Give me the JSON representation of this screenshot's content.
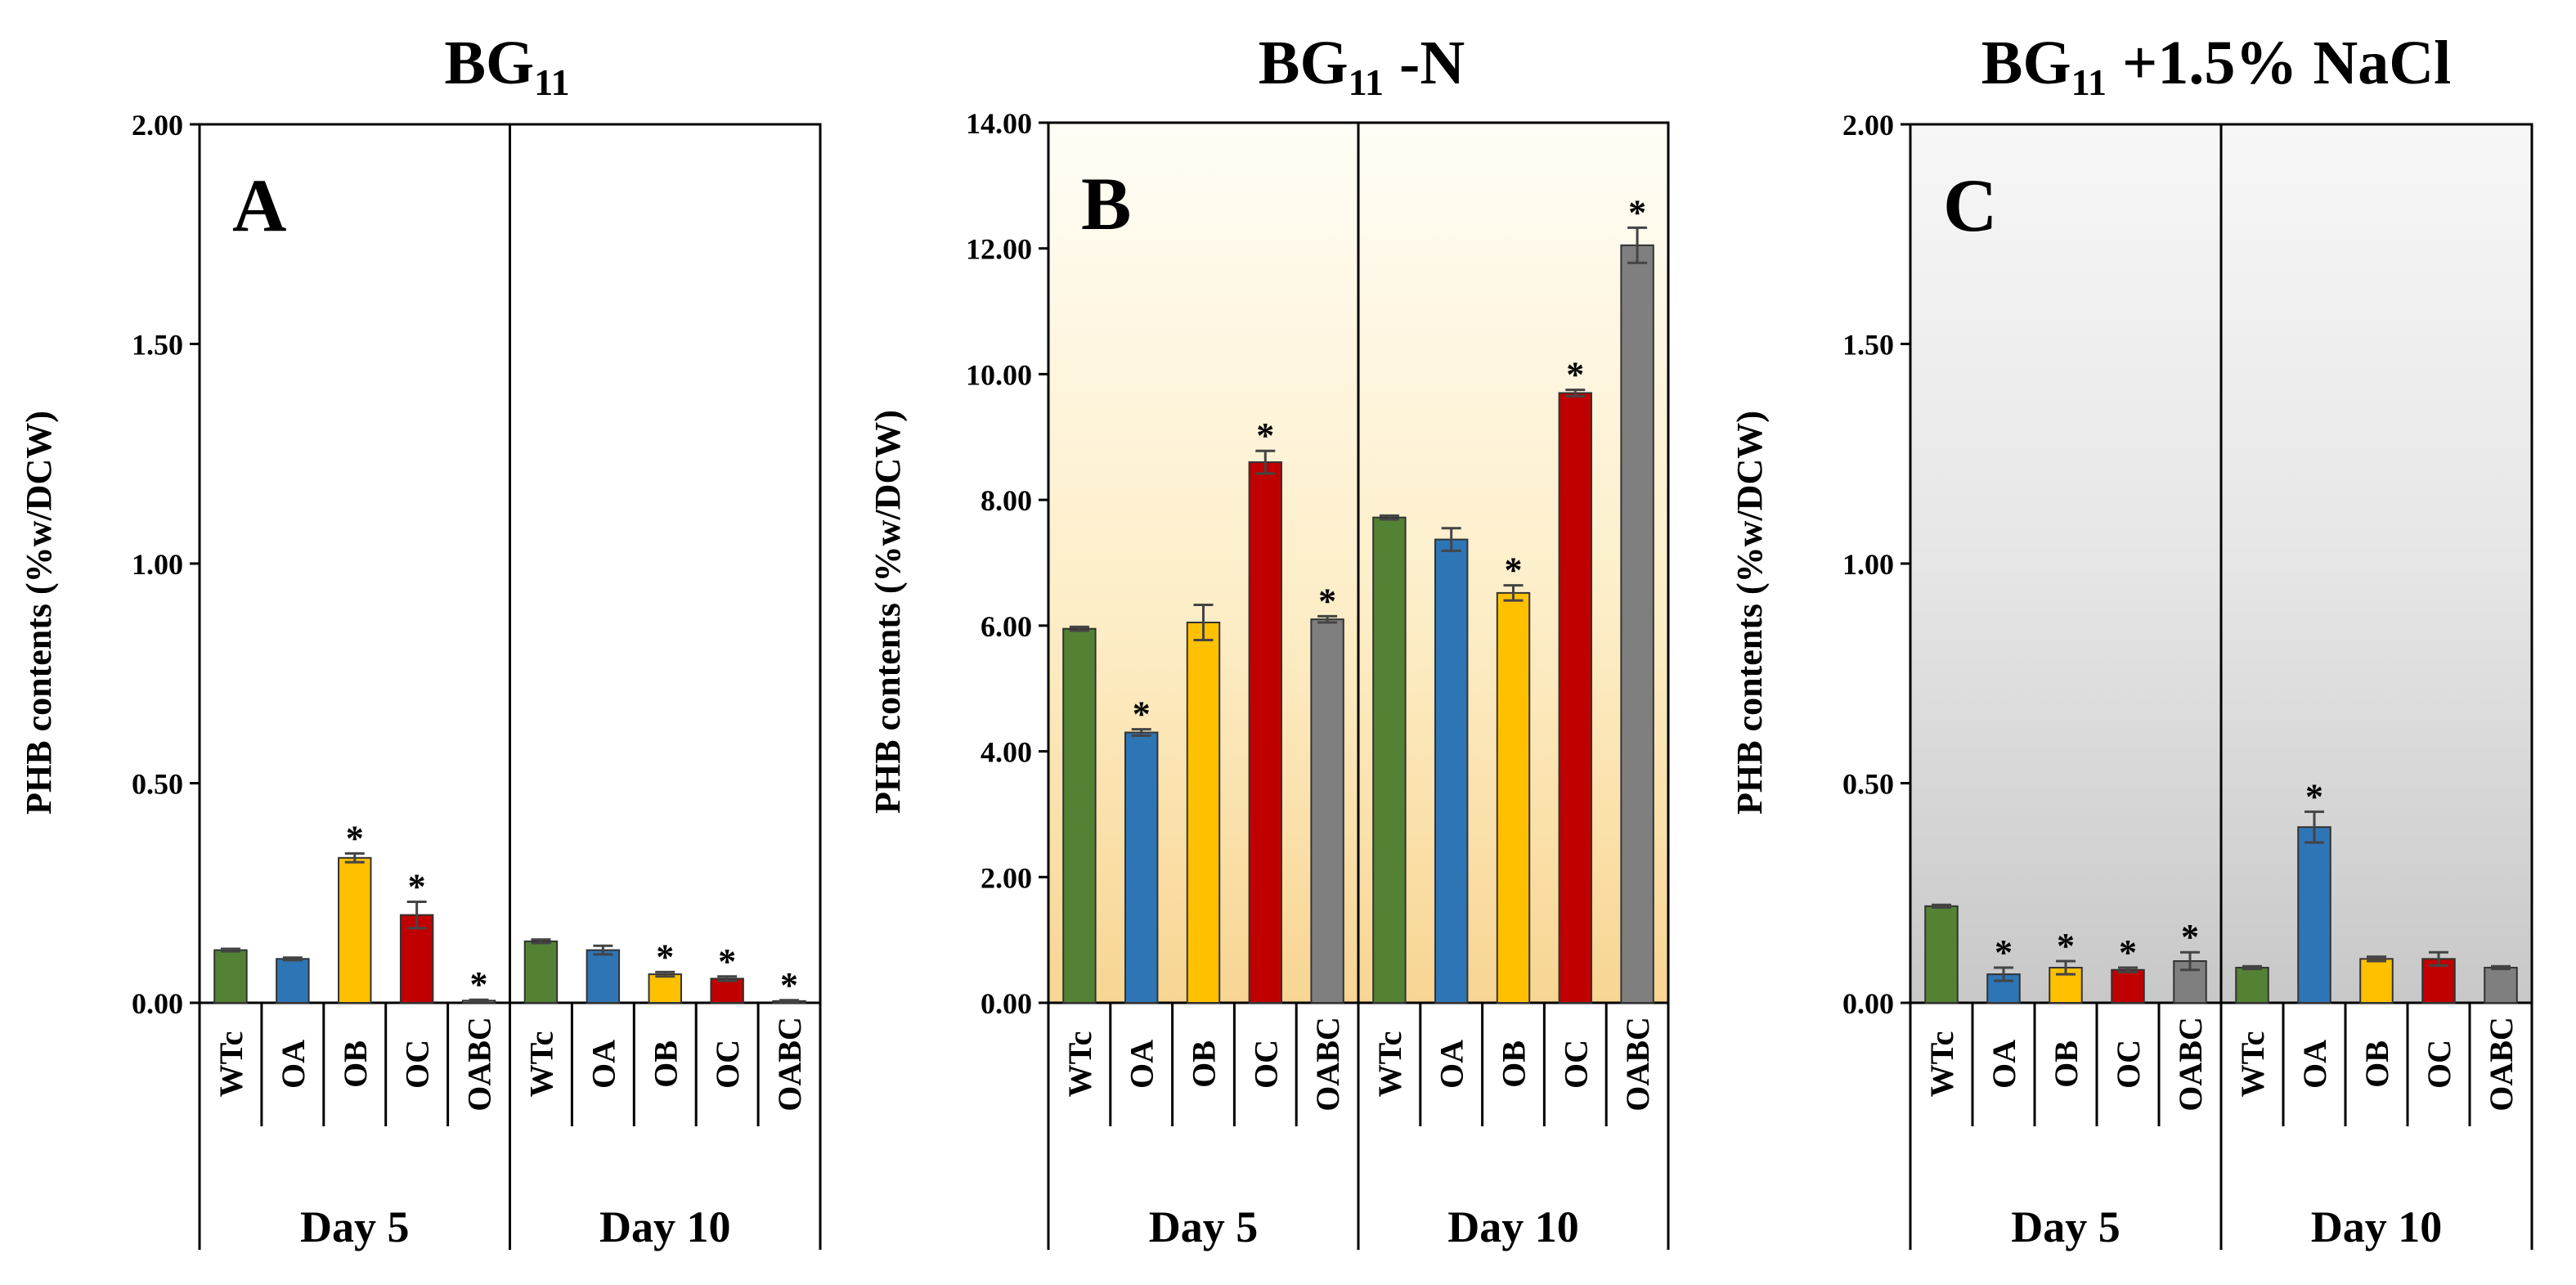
{
  "chart_data": [
    {
      "type": "bar",
      "panel_letter": "A",
      "title": "BG",
      "title_sub": "11",
      "title_suffix": "",
      "ylabel": "PHB contents (%w/DCW)",
      "ylim": [
        0,
        2
      ],
      "yticks": [
        "0.00",
        "0.50",
        "1.00",
        "1.50",
        "2.00"
      ],
      "background": "white",
      "groups": [
        {
          "name": "Day 5",
          "categories": [
            "WTc",
            "OA",
            "OB",
            "OC",
            "OABC"
          ],
          "values": [
            0.12,
            0.1,
            0.33,
            0.2,
            0.005
          ],
          "errors": [
            0.003,
            0.003,
            0.01,
            0.03,
            0.002
          ],
          "significant": [
            false,
            false,
            true,
            true,
            true
          ]
        },
        {
          "name": "Day 10",
          "categories": [
            "WTc",
            "OA",
            "OB",
            "OC",
            "OABC"
          ],
          "values": [
            0.14,
            0.12,
            0.065,
            0.055,
            0.004
          ],
          "errors": [
            0.004,
            0.01,
            0.005,
            0.005,
            0.002
          ],
          "significant": [
            false,
            false,
            true,
            true,
            true
          ]
        }
      ]
    },
    {
      "type": "bar",
      "panel_letter": "B",
      "title": "BG",
      "title_sub": "11",
      "title_suffix": " -N",
      "ylabel": "PHB contents (%w/DCW)",
      "ylim": [
        0,
        14
      ],
      "yticks": [
        "0.00",
        "2.00",
        "4.00",
        "6.00",
        "8.00",
        "10.00",
        "12.00",
        "14.00"
      ],
      "background": "yellow-gradient",
      "groups": [
        {
          "name": "Day 5",
          "categories": [
            "WTc",
            "OA",
            "OB",
            "OC",
            "OABC"
          ],
          "values": [
            5.95,
            4.3,
            6.05,
            8.6,
            6.1
          ],
          "errors": [
            0.03,
            0.05,
            0.28,
            0.18,
            0.05
          ],
          "significant": [
            false,
            true,
            false,
            true,
            true
          ]
        },
        {
          "name": "Day 10",
          "categories": [
            "WTc",
            "OA",
            "OB",
            "OC",
            "OABC"
          ],
          "values": [
            7.72,
            7.37,
            6.52,
            9.7,
            12.05
          ],
          "errors": [
            0.03,
            0.18,
            0.12,
            0.05,
            0.28
          ],
          "significant": [
            false,
            false,
            true,
            true,
            true
          ]
        }
      ]
    },
    {
      "type": "bar",
      "panel_letter": "C",
      "title": "BG",
      "title_sub": "11",
      "title_suffix": " +1.5% NaCl",
      "ylabel": "PHB contents (%w/DCW)",
      "ylim": [
        0,
        2
      ],
      "yticks": [
        "0.00",
        "0.50",
        "1.00",
        "1.50",
        "2.00"
      ],
      "background": "gray-gradient",
      "groups": [
        {
          "name": "Day 5",
          "categories": [
            "WTc",
            "OA",
            "OB",
            "OC",
            "OABC"
          ],
          "values": [
            0.22,
            0.065,
            0.08,
            0.075,
            0.095
          ],
          "errors": [
            0.003,
            0.015,
            0.015,
            0.005,
            0.02
          ],
          "significant": [
            false,
            true,
            true,
            true,
            true
          ]
        },
        {
          "name": "Day 10",
          "categories": [
            "WTc",
            "OA",
            "OB",
            "OC",
            "OABC"
          ],
          "values": [
            0.08,
            0.4,
            0.1,
            0.1,
            0.08
          ],
          "errors": [
            0.003,
            0.035,
            0.005,
            0.015,
            0.003
          ],
          "significant": [
            false,
            true,
            false,
            false,
            false
          ]
        }
      ]
    }
  ],
  "series_colors": {
    "WTc": "#548235",
    "OA": "#2E75B6",
    "OB": "#FFC000",
    "OC": "#C00000",
    "OABC": "#7F7F7F"
  },
  "significance_marker": "*"
}
